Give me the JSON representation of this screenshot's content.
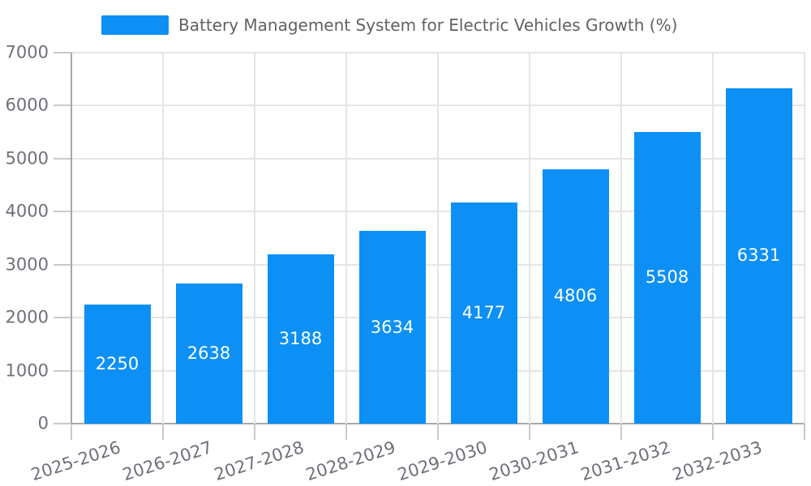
{
  "legend": {
    "label": "Battery Management System for Electric Vehicles Growth (%)"
  },
  "chart_data": {
    "type": "bar",
    "title": "Battery Management System for Electric Vehicles Growth (%)",
    "categories": [
      "2025-2026",
      "2026-2027",
      "2027-2028",
      "2028-2029",
      "2029-2030",
      "2030-2031",
      "2031-2032",
      "2032-2033"
    ],
    "values": [
      2250,
      2638,
      3188,
      3634,
      4177,
      4806,
      5508,
      6331
    ],
    "series_name": "Battery Management System for Electric Vehicles Growth (%)",
    "xlabel": "",
    "ylabel": "",
    "ylim": [
      0,
      7000
    ],
    "yticks": [
      0,
      1000,
      2000,
      3000,
      4000,
      5000,
      6000,
      7000
    ],
    "grid": true,
    "legend_position": "top",
    "bar_value_labels_shown": true,
    "x_tick_rotation_deg": -18
  },
  "colors": {
    "bar": "#0c90f6",
    "bar_label": "#ffffff",
    "grid": "#e5e5e5",
    "axis": "#a8a8a8",
    "tick": "#c9c9c9",
    "tick_label": "#6e7079",
    "legend_text": "#616161",
    "background": "#ffffff"
  }
}
